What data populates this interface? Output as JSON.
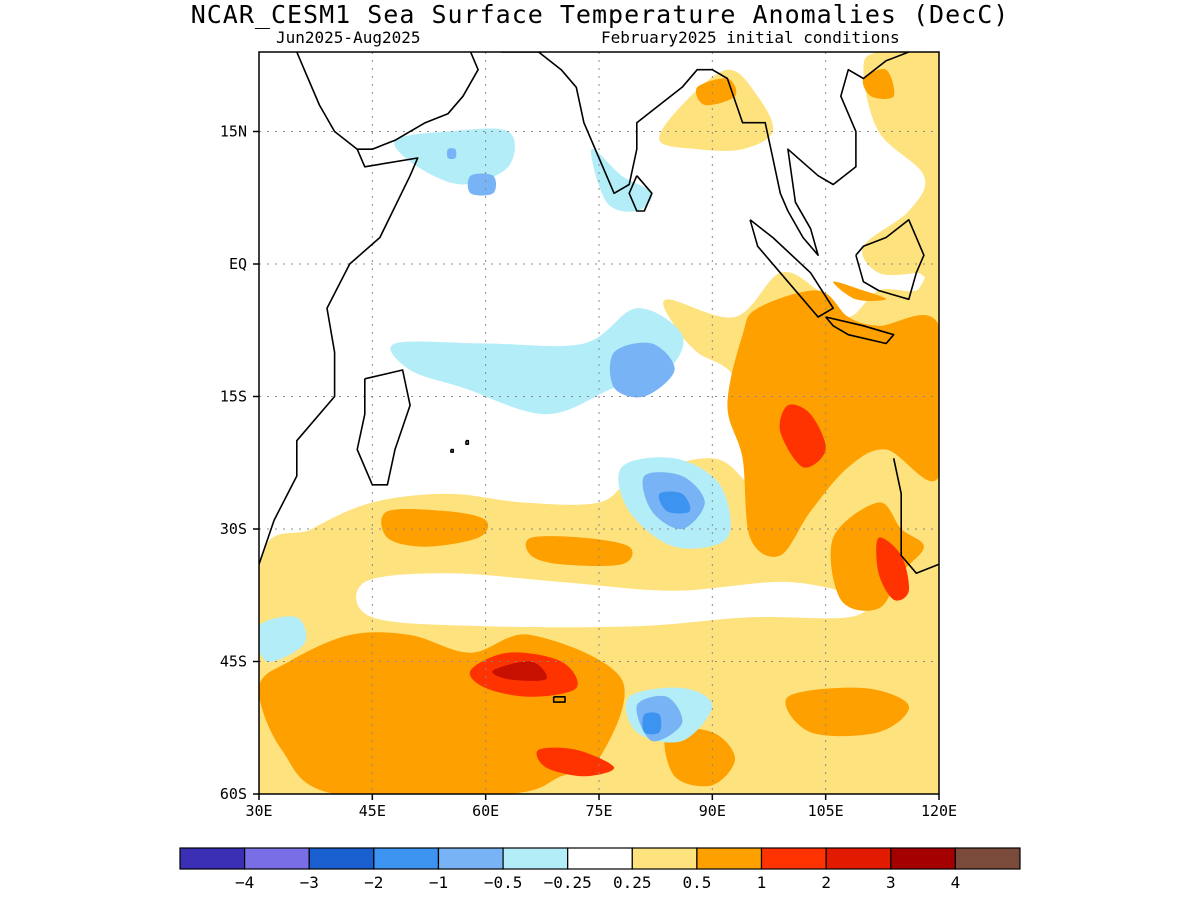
{
  "title": "NCAR_CESM1 Sea Surface Temperature Anomalies (DecC)",
  "subtitle_left": "Jun2025-Aug2025",
  "subtitle_right": "February2025 initial conditions",
  "map": {
    "lon_range": [
      30,
      120
    ],
    "lat_range": [
      -60,
      24
    ],
    "lat_ticks": [
      {
        "value": 15,
        "label": "15N"
      },
      {
        "value": 0,
        "label": "EQ"
      },
      {
        "value": -15,
        "label": "15S"
      },
      {
        "value": -30,
        "label": "30S"
      },
      {
        "value": -45,
        "label": "45S"
      },
      {
        "value": -60,
        "label": "60S"
      }
    ],
    "lon_ticks": [
      {
        "value": 30,
        "label": "30E"
      },
      {
        "value": 45,
        "label": "45E"
      },
      {
        "value": 60,
        "label": "60E"
      },
      {
        "value": 75,
        "label": "75E"
      },
      {
        "value": 90,
        "label": "90E"
      },
      {
        "value": 105,
        "label": "105E"
      },
      {
        "value": 120,
        "label": "120E"
      }
    ],
    "grid": true
  },
  "colorbar": {
    "colors": [
      "#3a2fb5",
      "#7a6ee6",
      "#1a5fd0",
      "#3d93f0",
      "#78b4f5",
      "#b3eef8",
      "#ffffff",
      "#fee27e",
      "#fea000",
      "#ff3300",
      "#e21a00",
      "#a50000",
      "#7a4a3a"
    ],
    "labels": [
      "-4",
      "-3",
      "-2",
      "-1",
      "-0.5",
      "-0.25",
      "0.25",
      "0.5",
      "1",
      "2",
      "3",
      "4"
    ]
  },
  "anomaly_regions": [
    {
      "level": "0.5",
      "color": "#fee27e",
      "pts": [
        [
          75,
          -27
        ],
        [
          80,
          -24
        ],
        [
          90,
          -22
        ],
        [
          95,
          -25
        ],
        [
          100,
          -28
        ],
        [
          110,
          -30
        ],
        [
          120,
          -30
        ],
        [
          120,
          -60
        ],
        [
          30,
          -60
        ],
        [
          30,
          -34
        ],
        [
          37,
          -30
        ],
        [
          45,
          -27
        ],
        [
          55,
          -26
        ],
        [
          65,
          -27
        ]
      ]
    },
    {
      "level": "0.5",
      "color": "#fee27e",
      "pts": [
        [
          84,
          -4
        ],
        [
          93,
          -6
        ],
        [
          99,
          -1
        ],
        [
          104,
          -3
        ],
        [
          108,
          -6
        ],
        [
          112,
          -3
        ],
        [
          117,
          -3
        ],
        [
          120,
          -1
        ],
        [
          120,
          -30
        ],
        [
          110,
          -30
        ],
        [
          102,
          -32
        ],
        [
          96,
          -30
        ],
        [
          95,
          -22
        ],
        [
          93,
          -13
        ],
        [
          88,
          -10
        ],
        [
          85,
          -7
        ]
      ]
    },
    {
      "level": "0.5",
      "color": "#fee27e",
      "pts": [
        [
          110,
          2
        ],
        [
          112,
          -1
        ],
        [
          117,
          -1
        ],
        [
          120,
          0
        ],
        [
          120,
          24
        ],
        [
          112,
          24
        ],
        [
          110,
          22
        ],
        [
          112,
          15
        ],
        [
          118,
          10
        ],
        [
          116,
          6
        ]
      ]
    },
    {
      "level": "0.5",
      "color": "#fee27e",
      "pts": [
        [
          83,
          14
        ],
        [
          86,
          18
        ],
        [
          92,
          22
        ],
        [
          96,
          19
        ],
        [
          98,
          15
        ],
        [
          94,
          13
        ],
        [
          88,
          13
        ]
      ]
    },
    {
      "level": "0.25w",
      "color": "#ffffff",
      "pts": [
        [
          44,
          -36
        ],
        [
          55,
          -35
        ],
        [
          70,
          -36
        ],
        [
          85,
          -37
        ],
        [
          100,
          -36
        ],
        [
          110,
          -38
        ],
        [
          108,
          -40
        ],
        [
          95,
          -40
        ],
        [
          80,
          -41
        ],
        [
          60,
          -41
        ],
        [
          45,
          -40
        ]
      ]
    },
    {
      "level": "1",
      "color": "#fea000",
      "pts": [
        [
          96,
          -5
        ],
        [
          104,
          -3
        ],
        [
          108,
          -6
        ],
        [
          112,
          -7
        ],
        [
          120,
          -7
        ],
        [
          120,
          -24
        ],
        [
          113,
          -21
        ],
        [
          108,
          -23
        ],
        [
          103,
          -28
        ],
        [
          99,
          -33
        ],
        [
          95,
          -31
        ],
        [
          94,
          -22
        ],
        [
          92,
          -16
        ],
        [
          94,
          -8
        ]
      ]
    },
    {
      "level": "1",
      "color": "#fea000",
      "pts": [
        [
          106,
          -31
        ],
        [
          112,
          -27
        ],
        [
          115,
          -30
        ],
        [
          118,
          -32
        ],
        [
          115,
          -35
        ],
        [
          112,
          -39
        ],
        [
          107,
          -38
        ]
      ]
    },
    {
      "level": "1",
      "color": "#fea000",
      "pts": [
        [
          30,
          -48
        ],
        [
          34,
          -45
        ],
        [
          42,
          -42
        ],
        [
          50,
          -42
        ],
        [
          58,
          -44
        ],
        [
          66,
          -42
        ],
        [
          78,
          -47
        ],
        [
          75,
          -56
        ],
        [
          70,
          -58
        ],
        [
          63,
          -60
        ],
        [
          40,
          -60
        ],
        [
          33,
          -55
        ]
      ]
    },
    {
      "level": "1",
      "color": "#fea000",
      "pts": [
        [
          47,
          -28
        ],
        [
          55,
          -28
        ],
        [
          60,
          -29
        ],
        [
          59,
          -31
        ],
        [
          52,
          -32
        ],
        [
          47,
          -31
        ]
      ]
    },
    {
      "level": "1",
      "color": "#fea000",
      "pts": [
        [
          66,
          -31
        ],
        [
          73,
          -31
        ],
        [
          79,
          -32
        ],
        [
          78,
          -34
        ],
        [
          70,
          -34
        ],
        [
          66,
          -33
        ]
      ]
    },
    {
      "level": "1",
      "color": "#fea000",
      "pts": [
        [
          84,
          -53
        ],
        [
          90,
          -53
        ],
        [
          93,
          -56
        ],
        [
          90,
          -59
        ],
        [
          85,
          -58
        ]
      ]
    },
    {
      "level": "1",
      "color": "#fea000",
      "pts": [
        [
          100,
          -49
        ],
        [
          110,
          -48
        ],
        [
          116,
          -50
        ],
        [
          112,
          -53
        ],
        [
          103,
          -53
        ]
      ]
    },
    {
      "level": "1",
      "color": "#fea000",
      "pts": [
        [
          106,
          -2
        ],
        [
          110,
          -3
        ],
        [
          113,
          -4
        ],
        [
          109,
          -4
        ]
      ]
    },
    {
      "level": "1",
      "color": "#fea000",
      "pts": [
        [
          88,
          20
        ],
        [
          92,
          21
        ],
        [
          93,
          19
        ],
        [
          89,
          18
        ]
      ]
    },
    {
      "level": "1",
      "color": "#fea000",
      "pts": [
        [
          110,
          21
        ],
        [
          113,
          22
        ],
        [
          114,
          19
        ],
        [
          111,
          19
        ]
      ]
    },
    {
      "level": "2",
      "color": "#ff3300",
      "pts": [
        [
          100,
          -16
        ],
        [
          103,
          -17
        ],
        [
          105,
          -21
        ],
        [
          102,
          -23
        ],
        [
          99,
          -19
        ]
      ]
    },
    {
      "level": "2",
      "color": "#ff3300",
      "pts": [
        [
          112,
          -31
        ],
        [
          115,
          -33
        ],
        [
          116,
          -37
        ],
        [
          114,
          -38
        ],
        [
          112,
          -35
        ]
      ]
    },
    {
      "level": "2",
      "color": "#ff3300",
      "pts": [
        [
          58,
          -46
        ],
        [
          63,
          -44
        ],
        [
          70,
          -45
        ],
        [
          72,
          -48
        ],
        [
          66,
          -49
        ],
        [
          60,
          -48
        ]
      ]
    },
    {
      "level": "2",
      "color": "#ff3300",
      "pts": [
        [
          67,
          -55
        ],
        [
          72,
          -55
        ],
        [
          77,
          -57
        ],
        [
          73,
          -58
        ],
        [
          68,
          -57
        ]
      ]
    },
    {
      "level": "3",
      "color": "#c81000",
      "pts": [
        [
          61,
          -46
        ],
        [
          66,
          -45
        ],
        [
          68,
          -47
        ],
        [
          63,
          -47
        ]
      ]
    },
    {
      "level": "-0.25",
      "color": "#b3eef8",
      "pts": [
        [
          48,
          14
        ],
        [
          55,
          15
        ],
        [
          63,
          15
        ],
        [
          63,
          11
        ],
        [
          57,
          9
        ],
        [
          51,
          11
        ]
      ]
    },
    {
      "level": "-0.25",
      "color": "#b3eef8",
      "pts": [
        [
          74,
          13
        ],
        [
          78,
          10
        ],
        [
          82,
          8
        ],
        [
          80,
          6
        ],
        [
          76,
          7
        ]
      ]
    },
    {
      "level": "-0.25",
      "color": "#b3eef8",
      "pts": [
        [
          48,
          -9
        ],
        [
          60,
          -9
        ],
        [
          73,
          -9
        ],
        [
          80,
          -5
        ],
        [
          86,
          -8
        ],
        [
          84,
          -12
        ],
        [
          77,
          -14
        ],
        [
          68,
          -17
        ],
        [
          57,
          -14
        ],
        [
          50,
          -12
        ]
      ]
    },
    {
      "level": "-0.25",
      "color": "#b3eef8",
      "pts": [
        [
          78,
          -23
        ],
        [
          85,
          -22
        ],
        [
          91,
          -25
        ],
        [
          92,
          -31
        ],
        [
          85,
          -32
        ],
        [
          79,
          -28
        ]
      ]
    },
    {
      "level": "-0.25",
      "color": "#b3eef8",
      "pts": [
        [
          79,
          -49
        ],
        [
          86,
          -48
        ],
        [
          90,
          -50
        ],
        [
          86,
          -54
        ],
        [
          80,
          -53
        ]
      ]
    },
    {
      "level": "-0.25",
      "color": "#b3eef8",
      "pts": [
        [
          30,
          -41
        ],
        [
          35,
          -40
        ],
        [
          36,
          -43
        ],
        [
          31,
          -45
        ]
      ]
    },
    {
      "level": "-0.5",
      "color": "#78b4f5",
      "pts": [
        [
          77,
          -10
        ],
        [
          82,
          -9
        ],
        [
          85,
          -12
        ],
        [
          81,
          -15
        ],
        [
          77,
          -14
        ]
      ]
    },
    {
      "level": "-0.5",
      "color": "#78b4f5",
      "pts": [
        [
          81,
          -24
        ],
        [
          86,
          -24
        ],
        [
          89,
          -27
        ],
        [
          86,
          -30
        ],
        [
          82,
          -28
        ]
      ]
    },
    {
      "level": "-0.5",
      "color": "#78b4f5",
      "pts": [
        [
          80,
          -50
        ],
        [
          84,
          -49
        ],
        [
          86,
          -52
        ],
        [
          82,
          -54
        ]
      ]
    },
    {
      "level": "-0.5",
      "color": "#78b4f5",
      "pts": [
        [
          58,
          10
        ],
        [
          61,
          10
        ],
        [
          61,
          8
        ],
        [
          58,
          8
        ]
      ]
    },
    {
      "level": "-0.5",
      "color": "#78b4f5",
      "pts": [
        [
          55,
          13
        ],
        [
          56,
          13
        ],
        [
          56,
          12
        ],
        [
          55,
          12
        ]
      ]
    },
    {
      "level": "-1",
      "color": "#3d93f0",
      "pts": [
        [
          83,
          -26
        ],
        [
          86,
          -26
        ],
        [
          87,
          -28
        ],
        [
          84,
          -28
        ]
      ]
    },
    {
      "level": "-1",
      "color": "#3d93f0",
      "pts": [
        [
          81,
          -51
        ],
        [
          83,
          -51
        ],
        [
          83,
          -53
        ],
        [
          81,
          -53
        ]
      ]
    }
  ],
  "coastlines": [
    [
      [
        30,
        -34
      ],
      [
        32,
        -29
      ],
      [
        35,
        -24
      ],
      [
        35,
        -20
      ],
      [
        40,
        -15
      ],
      [
        40,
        -10
      ],
      [
        39,
        -5
      ],
      [
        42,
        0
      ],
      [
        46,
        3
      ],
      [
        50,
        10
      ],
      [
        51,
        12
      ],
      [
        44,
        11
      ],
      [
        43,
        13
      ],
      [
        40,
        15
      ],
      [
        38,
        18
      ],
      [
        36,
        22
      ],
      [
        35,
        24
      ]
    ],
    [
      [
        43,
        13
      ],
      [
        45,
        13
      ],
      [
        48,
        14
      ],
      [
        52,
        16
      ],
      [
        55,
        17
      ],
      [
        57,
        19
      ],
      [
        59,
        22
      ],
      [
        58,
        24
      ]
    ],
    [
      [
        62,
        24
      ],
      [
        67,
        24
      ],
      [
        70,
        22
      ],
      [
        72,
        20
      ],
      [
        73,
        16
      ],
      [
        75,
        12
      ],
      [
        77,
        8
      ],
      [
        79,
        9
      ],
      [
        80,
        13
      ],
      [
        80,
        16
      ],
      [
        83,
        18
      ],
      [
        86,
        20
      ],
      [
        88,
        22
      ],
      [
        90,
        22
      ],
      [
        92,
        21
      ],
      [
        94,
        16
      ],
      [
        97,
        16
      ],
      [
        98,
        12
      ],
      [
        99,
        8
      ],
      [
        100,
        6
      ],
      [
        102,
        3
      ],
      [
        104,
        1
      ],
      [
        103,
        4
      ],
      [
        101,
        7
      ],
      [
        100,
        13
      ],
      [
        104,
        10
      ],
      [
        106,
        9
      ],
      [
        109,
        11
      ],
      [
        109,
        15
      ],
      [
        107,
        19
      ],
      [
        108,
        22
      ],
      [
        110,
        21
      ],
      [
        113,
        23
      ],
      [
        116,
        24
      ]
    ],
    [
      [
        95,
        5
      ],
      [
        98,
        3
      ],
      [
        103,
        -1
      ],
      [
        106,
        -5
      ],
      [
        104,
        -6
      ],
      [
        100,
        -2
      ],
      [
        96,
        2
      ],
      [
        95,
        5
      ]
    ],
    [
      [
        105,
        -6
      ],
      [
        110,
        -7
      ],
      [
        114,
        -8
      ],
      [
        113,
        -9
      ],
      [
        108,
        -8
      ],
      [
        106,
        -7
      ],
      [
        105,
        -6
      ]
    ],
    [
      [
        109,
        1
      ],
      [
        110,
        -2
      ],
      [
        112,
        -3
      ],
      [
        116,
        -4
      ],
      [
        117,
        -1
      ],
      [
        118,
        1
      ],
      [
        116,
        5
      ],
      [
        113,
        3
      ],
      [
        110,
        2
      ],
      [
        109,
        1
      ]
    ],
    [
      [
        114,
        -22
      ],
      [
        115,
        -26
      ],
      [
        115,
        -33
      ],
      [
        117,
        -35
      ],
      [
        120,
        -34
      ]
    ],
    [
      [
        44,
        -13
      ],
      [
        49,
        -12
      ],
      [
        50,
        -16
      ],
      [
        48,
        -21
      ],
      [
        47,
        -25
      ],
      [
        45,
        -25
      ],
      [
        43,
        -21
      ],
      [
        44,
        -17
      ],
      [
        44,
        -13
      ]
    ],
    [
      [
        80,
        10
      ],
      [
        82,
        8
      ],
      [
        81,
        6
      ],
      [
        80,
        6
      ],
      [
        79,
        8
      ],
      [
        80,
        10
      ]
    ],
    [
      [
        55.4,
        -21
      ],
      [
        55.7,
        -21
      ],
      [
        55.7,
        -21.3
      ],
      [
        55.4,
        -21.3
      ],
      [
        55.4,
        -21
      ]
    ],
    [
      [
        57.4,
        -20
      ],
      [
        57.7,
        -20
      ],
      [
        57.7,
        -20.4
      ],
      [
        57.4,
        -20.4
      ],
      [
        57.4,
        -20
      ]
    ],
    [
      [
        69,
        -49
      ],
      [
        70.5,
        -49
      ],
      [
        70.5,
        -49.6
      ],
      [
        69,
        -49.6
      ],
      [
        69,
        -49
      ]
    ]
  ]
}
